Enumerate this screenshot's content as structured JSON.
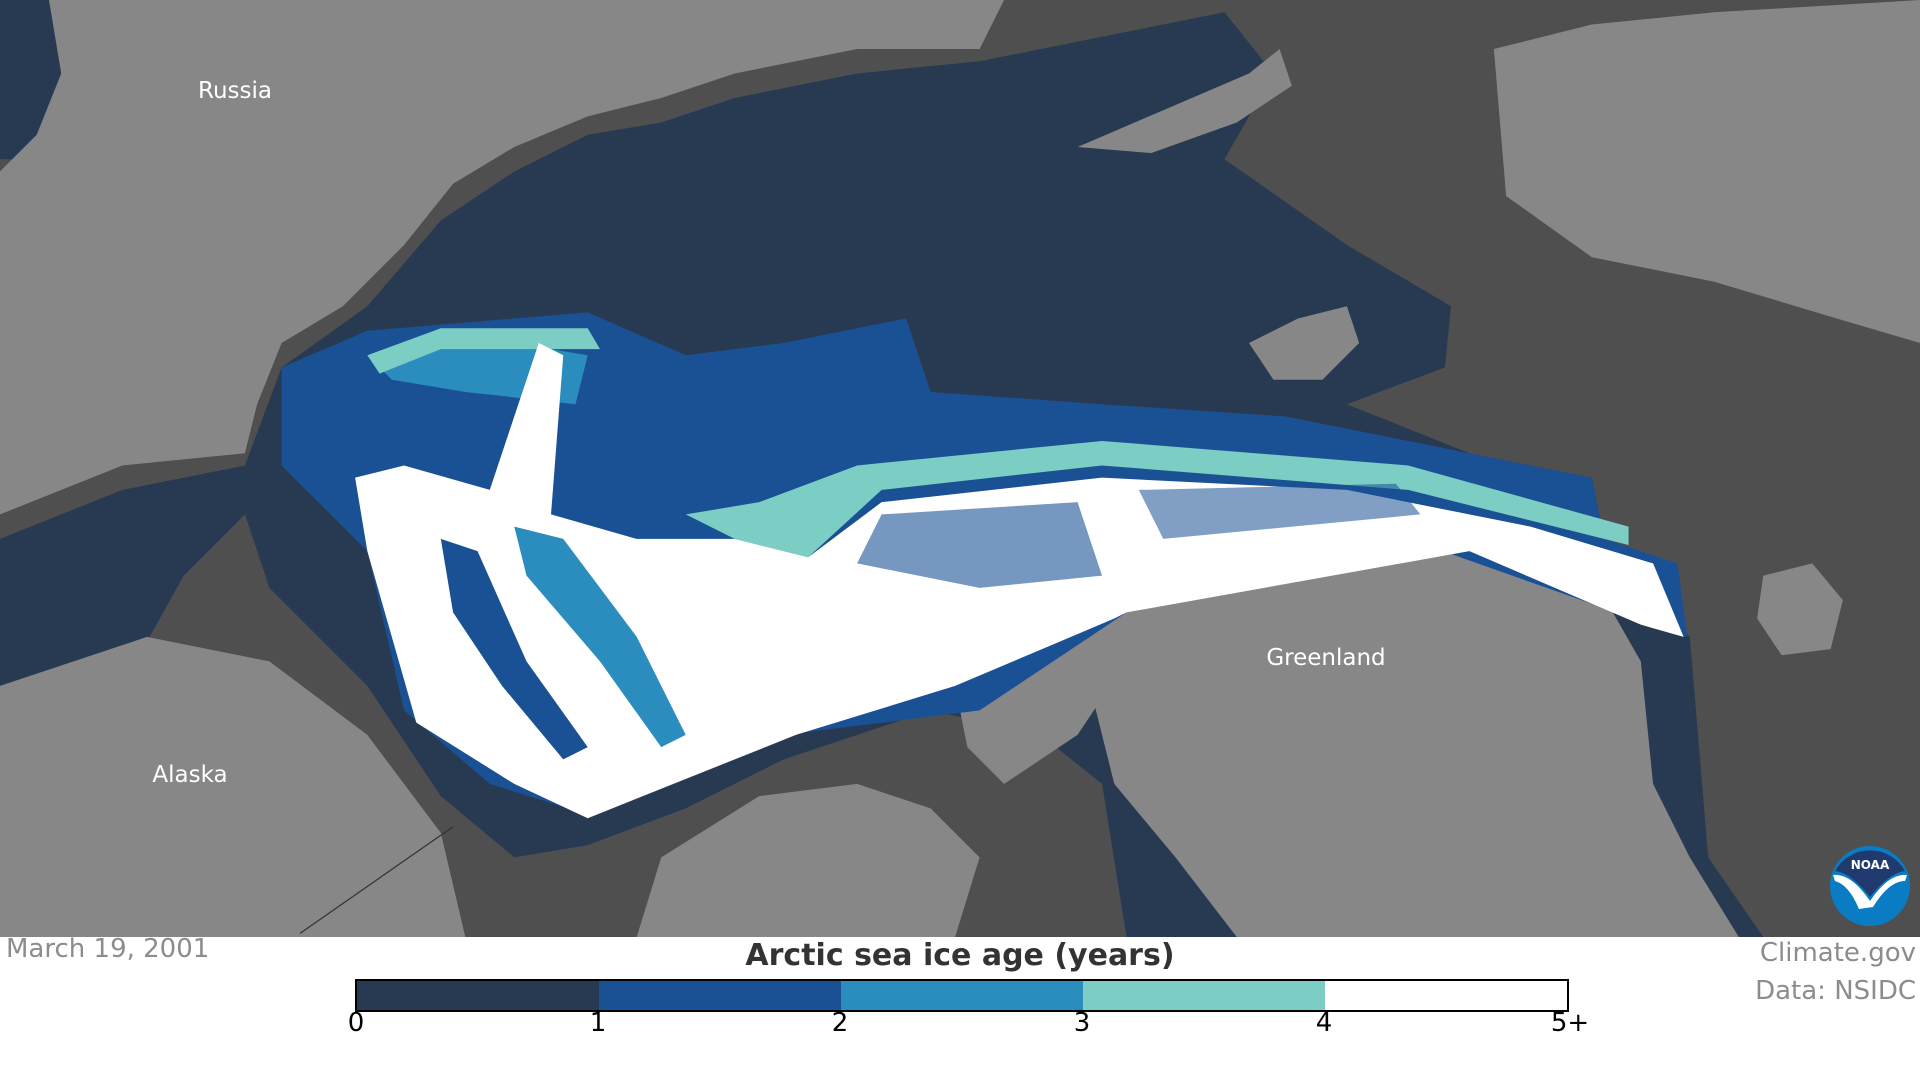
{
  "map": {
    "labels": {
      "russia": "Russia",
      "alaska": "Alaska",
      "greenland": "Greenland"
    },
    "colors": {
      "land": "#878787",
      "shelf": "#4f4f4f",
      "open_water": "#283a52"
    }
  },
  "logo": {
    "text": "NOAA"
  },
  "footer": {
    "date": "March 19, 2001",
    "title": "Arctic sea ice age (years)",
    "credit_site": "Climate.gov",
    "credit_data": "Data: NSIDC"
  },
  "legend": {
    "ticks": [
      "0",
      "1",
      "2",
      "3",
      "4",
      "5+"
    ],
    "colors": [
      "#283a52",
      "#1a5194",
      "#2b8cbe",
      "#7ccdc4",
      "#ffffff"
    ]
  }
}
